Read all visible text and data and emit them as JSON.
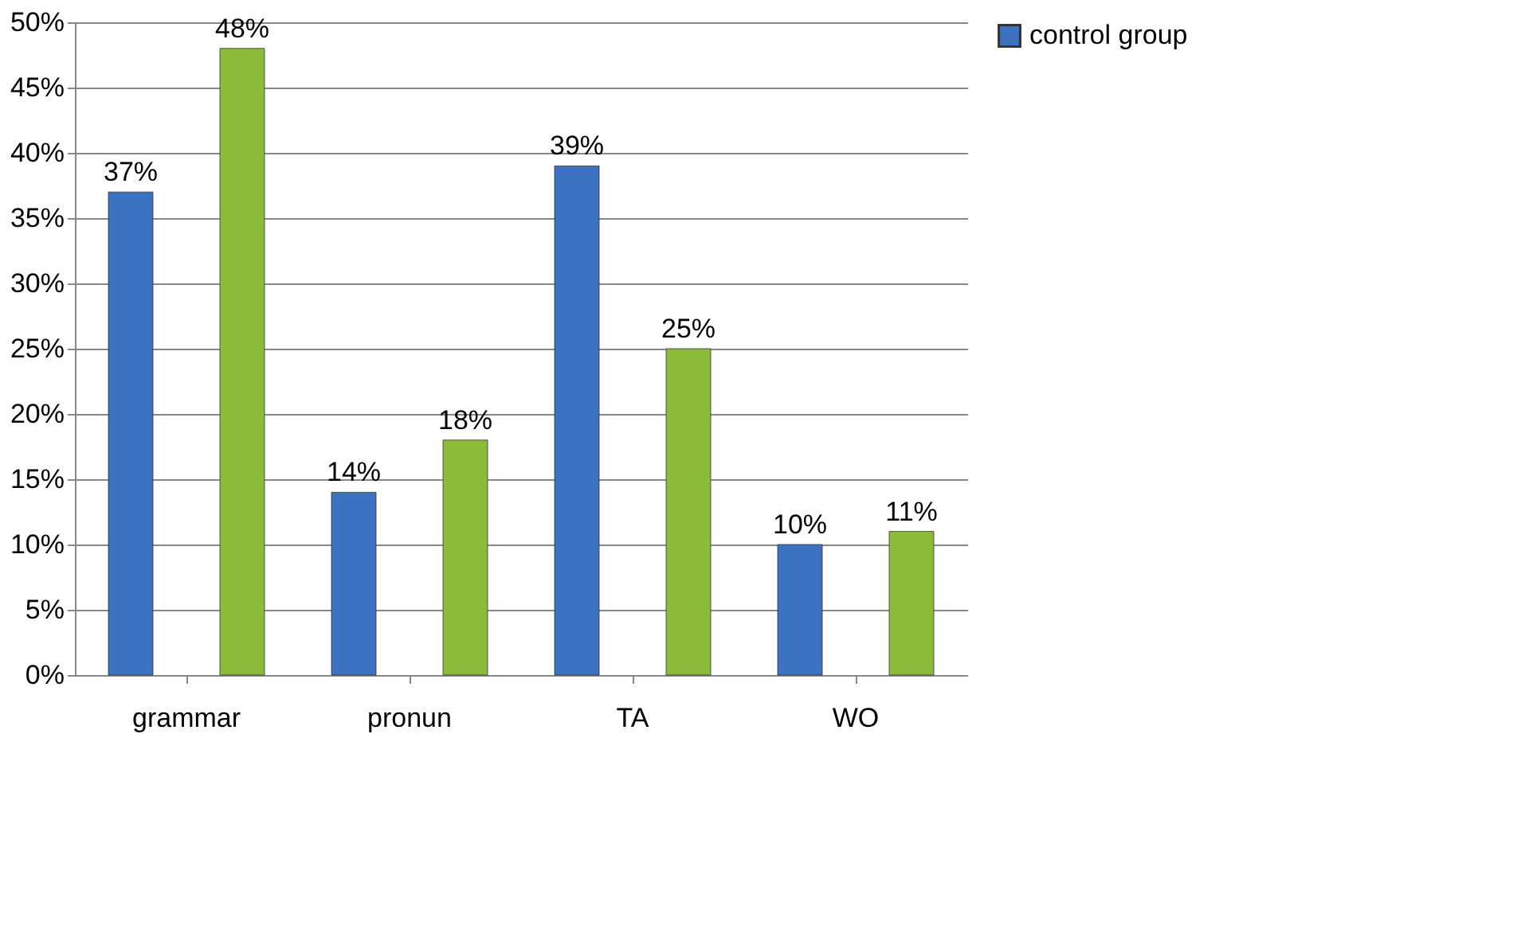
{
  "chart_data": {
    "type": "bar",
    "categories": [
      "grammar",
      "pronun",
      "TA",
      "WO"
    ],
    "series": [
      {
        "name": "control group",
        "color": "#3c72c2",
        "values": [
          37,
          14,
          39,
          10
        ],
        "value_labels": [
          "37%",
          "14%",
          "39%",
          "10%"
        ]
      },
      {
        "color": "#8cbb3a",
        "values": [
          48,
          18,
          25,
          11
        ],
        "value_labels": [
          "48%",
          "18%",
          "25%",
          "11%"
        ]
      }
    ],
    "ylim": [
      0,
      50
    ],
    "yticks": [
      {
        "value": 0,
        "label": "0%"
      },
      {
        "value": 5,
        "label": "5%"
      },
      {
        "value": 10,
        "label": "10%"
      },
      {
        "value": 15,
        "label": "15%"
      },
      {
        "value": 20,
        "label": "20%"
      },
      {
        "value": 25,
        "label": "25%"
      },
      {
        "value": 30,
        "label": "30%"
      },
      {
        "value": 35,
        "label": "35%"
      },
      {
        "value": 40,
        "label": "40%"
      },
      {
        "value": 45,
        "label": "45%"
      },
      {
        "value": 50,
        "label": "50%"
      }
    ],
    "grid": "y",
    "legend": "right"
  }
}
